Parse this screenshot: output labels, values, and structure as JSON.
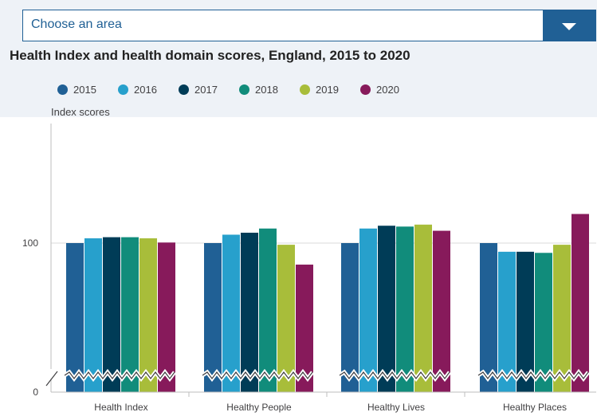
{
  "area_select": {
    "placeholder": "Choose an area",
    "icon": "chevron-down-icon"
  },
  "chart_data": {
    "type": "bar",
    "title": "Health Index and health domain scores, England, 2015 to 2020",
    "ylabel": "Index scores",
    "xlabel": "",
    "categories": [
      "Health Index",
      "Healthy People",
      "Healthy Lives",
      "Healthy Places"
    ],
    "series": [
      {
        "name": "2015",
        "color": "#206095",
        "values": [
          100,
          100,
          100,
          100
        ]
      },
      {
        "name": "2016",
        "color": "#27a0cc",
        "values": [
          101.7,
          103,
          105.2,
          96.9
        ]
      },
      {
        "name": "2017",
        "color": "#003c57",
        "values": [
          102.1,
          103.7,
          106.2,
          96.9
        ]
      },
      {
        "name": "2018",
        "color": "#118c7b",
        "values": [
          102.1,
          105.2,
          105.9,
          96.5
        ]
      },
      {
        "name": "2019",
        "color": "#a8bd3a",
        "values": [
          101.7,
          99.4,
          106.6,
          99.4
        ]
      },
      {
        "name": "2020",
        "color": "#871a5b",
        "values": [
          100.2,
          92.3,
          104.4,
          110.4
        ]
      }
    ],
    "yticks": [
      "0",
      "100"
    ],
    "axis_break": true,
    "grid": "horizontal",
    "legend_position": "top"
  }
}
